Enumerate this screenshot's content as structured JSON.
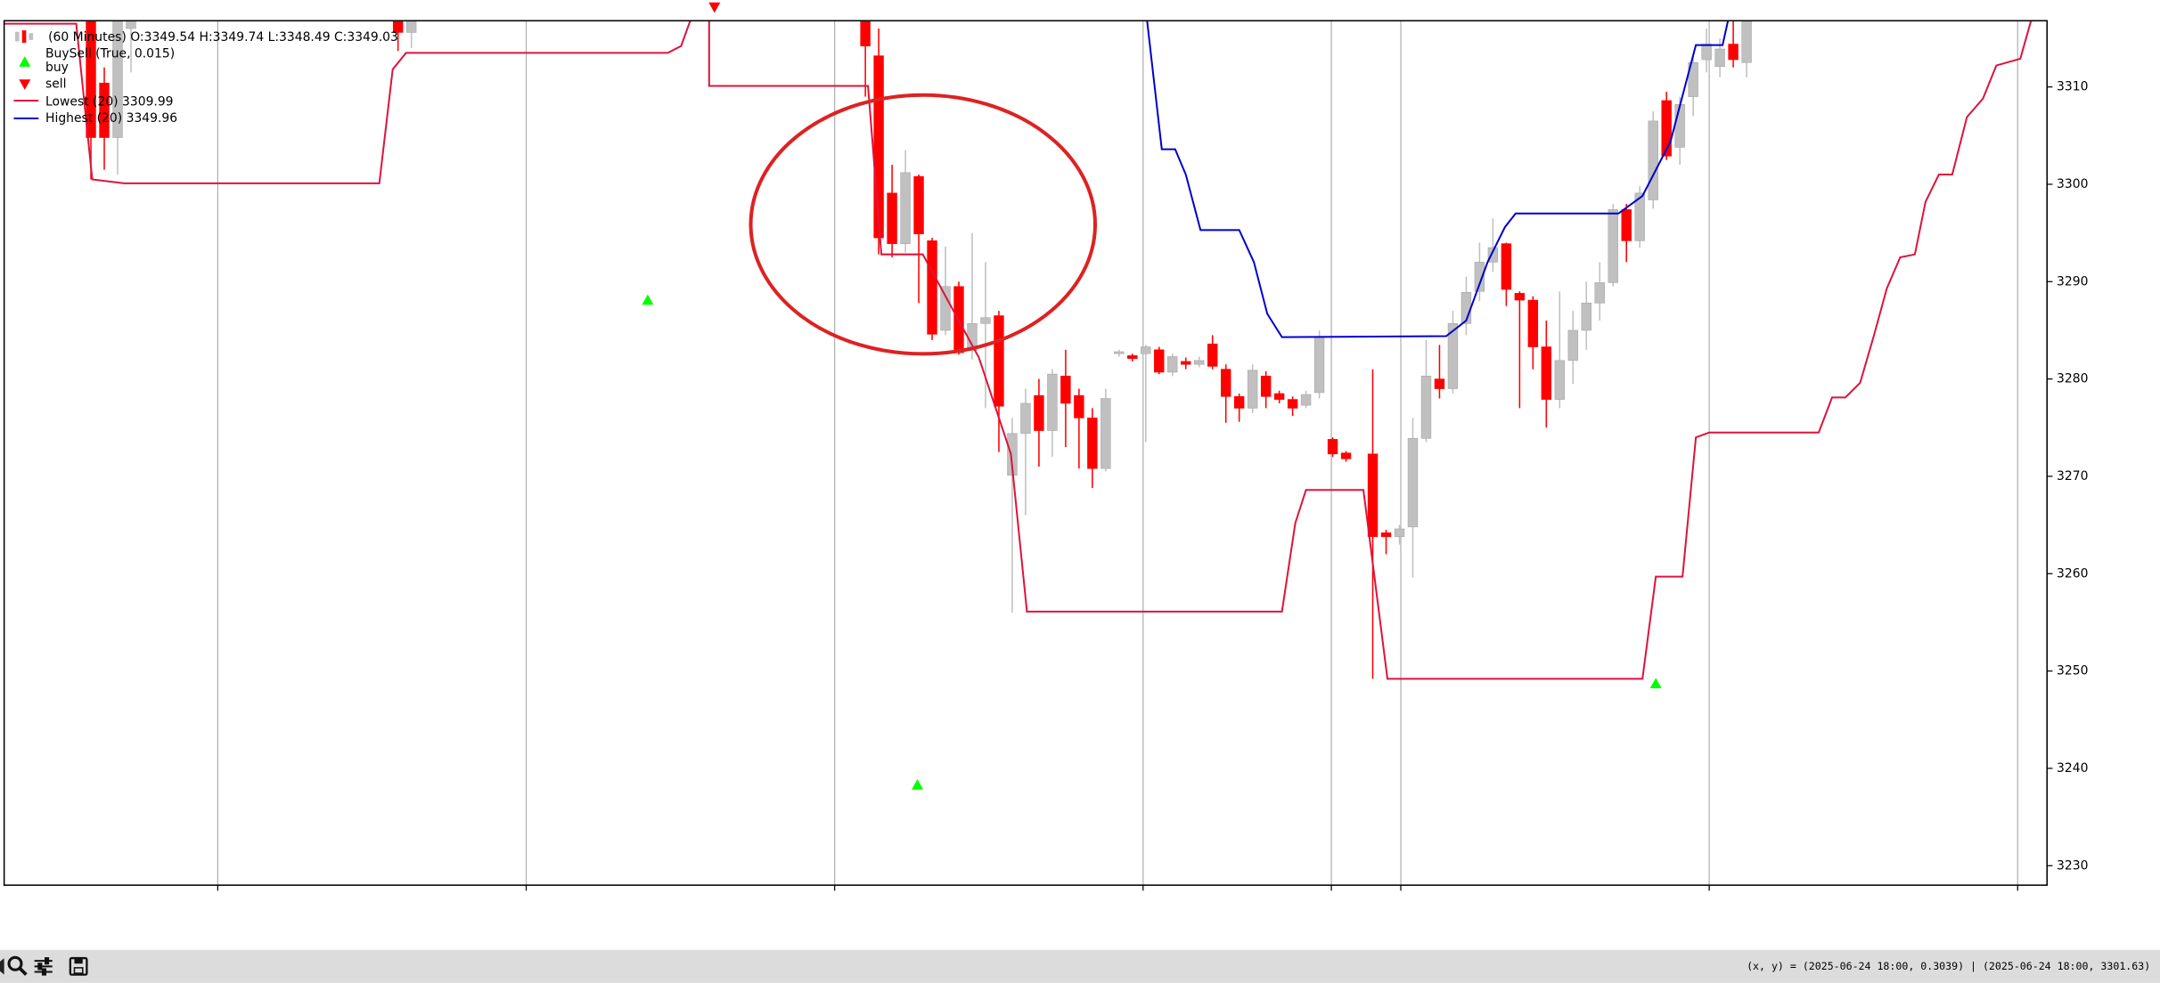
{
  "chart_data": {
    "type": "candlestick",
    "candles": {
      "name": "(60 Minutes) O:3349.54 H:3349.74 L:3348.49 C:3349.03",
      "up_color": "#c0c0c0",
      "down_color": "#ff0000",
      "x": [
        6,
        7,
        8,
        9,
        29,
        30,
        64,
        65,
        66,
        67,
        68,
        69,
        70,
        71,
        72,
        73,
        74,
        75,
        76,
        77,
        78,
        79,
        80,
        81,
        82,
        83,
        84,
        85,
        86,
        87,
        88,
        89,
        90,
        91,
        92,
        93,
        94,
        95,
        96,
        97,
        98,
        99,
        100,
        102,
        103,
        104,
        105,
        106,
        107,
        108,
        109,
        110,
        111,
        112,
        113,
        114,
        115,
        116,
        117,
        118,
        119,
        120,
        121,
        122,
        123,
        124,
        125,
        126,
        127,
        128,
        129,
        130
      ],
      "open": [
        3318,
        3310.4,
        3304.8,
        3316,
        3318,
        3315.6,
        3318,
        3313.2,
        3299.1,
        3293.9,
        3300.8,
        3294.2,
        3285,
        3289.5,
        3282.9,
        3285.7,
        3286.5,
        3270.1,
        3274.4,
        3278.3,
        3274.7,
        3280.3,
        3278.3,
        3276,
        3270.8,
        3282.6,
        3282.4,
        3282.6,
        3283,
        3280.7,
        3281.8,
        3281.5,
        3283.6,
        3281,
        3278.2,
        3277,
        3280.3,
        3278.5,
        3277.9,
        3277.3,
        3278.6,
        3273.8,
        3272.4,
        3272.3,
        3264.2,
        3263.8,
        3264.8,
        3273.9,
        3280,
        3279,
        3285.7,
        3289,
        3292,
        3293.9,
        3288.8,
        3288.1,
        3283.3,
        3277.9,
        3281.9,
        3285,
        3287.8,
        3289.9,
        3297.4,
        3294.2,
        3298.4,
        3308.6,
        3303.8,
        3309,
        3312.8,
        3312.1,
        3314.4,
        3312.5
      ],
      "high": [
        3320,
        3312,
        3320,
        3320,
        3320,
        3320,
        3320,
        3316,
        3302,
        3303.5,
        3301,
        3294.5,
        3293.6,
        3290,
        3295,
        3292,
        3287,
        3276,
        3279,
        3280,
        3281,
        3283,
        3279,
        3277,
        3279,
        3283,
        3282.6,
        3283.5,
        3283.3,
        3282.6,
        3282.2,
        3282.3,
        3284.5,
        3281.5,
        3278.5,
        3281.5,
        3280.8,
        3278.8,
        3278.2,
        3278.8,
        3285,
        3274,
        3272.6,
        3281,
        3264.5,
        3265,
        3276,
        3284,
        3283.5,
        3287,
        3290.5,
        3294,
        3296.5,
        3294,
        3289,
        3288.5,
        3286,
        3289,
        3287,
        3290,
        3292,
        3298,
        3298,
        3299.8,
        3307.5,
        3309.5,
        3309,
        3313.5,
        3316,
        3315,
        3318,
        3320
      ],
      "low": [
        3300.5,
        3301.5,
        3301,
        3311.5,
        3313.7,
        3314,
        3309,
        3292.8,
        3292.5,
        3293,
        3287.8,
        3284,
        3284.5,
        3282.5,
        3282,
        3277,
        3272.5,
        3256,
        3266,
        3271,
        3272,
        3273,
        3270.8,
        3268.8,
        3270.5,
        3282.3,
        3281.8,
        3273.5,
        3280.5,
        3280.3,
        3281,
        3281.2,
        3281,
        3275.5,
        3275.6,
        3276.5,
        3277,
        3277.5,
        3276.2,
        3277,
        3278,
        3272,
        3271.5,
        3249.2,
        3262,
        3263,
        3259.6,
        3273.5,
        3278,
        3278.5,
        3284.5,
        3288,
        3291,
        3287.5,
        3277,
        3281,
        3275,
        3277,
        3279.5,
        3283,
        3286,
        3289.5,
        3292,
        3293.5,
        3297.5,
        3302.5,
        3302,
        3307,
        3311.5,
        3311,
        3312,
        3311
      ],
      "close": [
        3304.8,
        3304.8,
        3318,
        3317.5,
        3315.6,
        3318,
        3314.2,
        3294.5,
        3293.9,
        3301.2,
        3294.9,
        3284.6,
        3289.5,
        3282.7,
        3285.7,
        3286.3,
        3277.2,
        3274.4,
        3277.5,
        3274.7,
        3280.5,
        3277.5,
        3276,
        3270.8,
        3278,
        3282.8,
        3282.1,
        3283.3,
        3280.7,
        3282.3,
        3281.5,
        3281.9,
        3281.3,
        3278.2,
        3277,
        3280.9,
        3278.2,
        3277.9,
        3277,
        3278.4,
        3284.3,
        3272.3,
        3271.8,
        3263.8,
        3263.8,
        3264.6,
        3273.9,
        3280.3,
        3279,
        3285.7,
        3288.9,
        3292,
        3293.5,
        3289.2,
        3288.1,
        3283.3,
        3277.9,
        3281.9,
        3285,
        3287.8,
        3289.9,
        3297.4,
        3294.2,
        3299.1,
        3306.5,
        3302.9,
        3308.2,
        3312.5,
        3314.4,
        3313.9,
        3312.8,
        3318
      ]
    },
    "indicator_title": "BuySell (True, 0.015)",
    "markers": [
      {
        "name": "buy",
        "shape": "up",
        "color": "#00ff00",
        "x": [
          47.7,
          67.9,
          123.2
        ],
        "values": [
          3288.1,
          3238.3,
          3248.7
        ]
      },
      {
        "name": "sell",
        "shape": "down",
        "color": "#ff0000",
        "x": [
          52.7
        ],
        "values": [
          3318.2
        ]
      }
    ],
    "series": [
      {
        "name": "Lowest (20) 3309.99",
        "color": "#dc143c",
        "x": [
          -0.5,
          4.9,
          6.1,
          8.5,
          27.6,
          28.6,
          29.6,
          49.2,
          50.2,
          51.2,
          52.3,
          52.3,
          64.2,
          65.2,
          68.3,
          72.5,
          74.9,
          76.1,
          95.2,
          96.2,
          97.0,
          101.3,
          103.1,
          122.2,
          123.2,
          125.2,
          126.2,
          127.2,
          135.4,
          136.4,
          137.4,
          138.5,
          139.5,
          140.5,
          141.5,
          142.6,
          143.4,
          144.4,
          145.4,
          146.5,
          147.7,
          148.7,
          150.5,
          151.3,
          152.5
        ],
        "values": [
          3316.5,
          3316.5,
          3300.5,
          3300.1,
          3300.1,
          3311.8,
          3313.5,
          3313.5,
          3314.2,
          3318,
          3318,
          3310.1,
          3310.1,
          3292.8,
          3292.8,
          3282.2,
          3272.3,
          3256.1,
          3256.1,
          3265.2,
          3268.6,
          3268.6,
          3249.2,
          3249.2,
          3259.7,
          3259.7,
          3274,
          3274.5,
          3274.5,
          3278.1,
          3278.1,
          3279.6,
          3284.3,
          3289.3,
          3292.5,
          3292.8,
          3298.2,
          3301,
          3301,
          3306.9,
          3308.8,
          3312.2,
          3312.9,
          3316.8,
          3320
        ]
      },
      {
        "name": "Highest (20) 3349.96",
        "color": "#0000cd",
        "x": [
          85.0,
          86.2,
          87.2,
          88.0,
          89.1,
          92.0,
          93.1,
          94.1,
          95.2,
          107.5,
          109.0,
          110.6,
          111.9,
          112.7,
          120.4,
          122.2,
          124.3,
          126.2,
          128.2,
          128.8
        ],
        "values": [
          3318,
          3303.6,
          3303.6,
          3301,
          3295.3,
          3295.3,
          3292,
          3286.7,
          3284.3,
          3284.4,
          3286,
          3292,
          3295.6,
          3297,
          3297,
          3298.8,
          3304.4,
          3314.3,
          3314.3,
          3318
        ]
      }
    ],
    "xlim": [
      -0.5,
      152.5
    ],
    "xticks": [
      15.5,
      38.6,
      61.7,
      84.8,
      98.9,
      104.1,
      127.2,
      150.3
    ],
    "ylim": [
      3228,
      3316.8
    ],
    "yticks": [
      3230,
      3240,
      3250,
      3260,
      3270,
      3280,
      3290,
      3300,
      3310,
      3320
    ],
    "grid": true,
    "status_text": "(x, y) = (2025-06-24 18:00, 0.3039) | (2025-06-24 18:00, 3301.63)"
  }
}
